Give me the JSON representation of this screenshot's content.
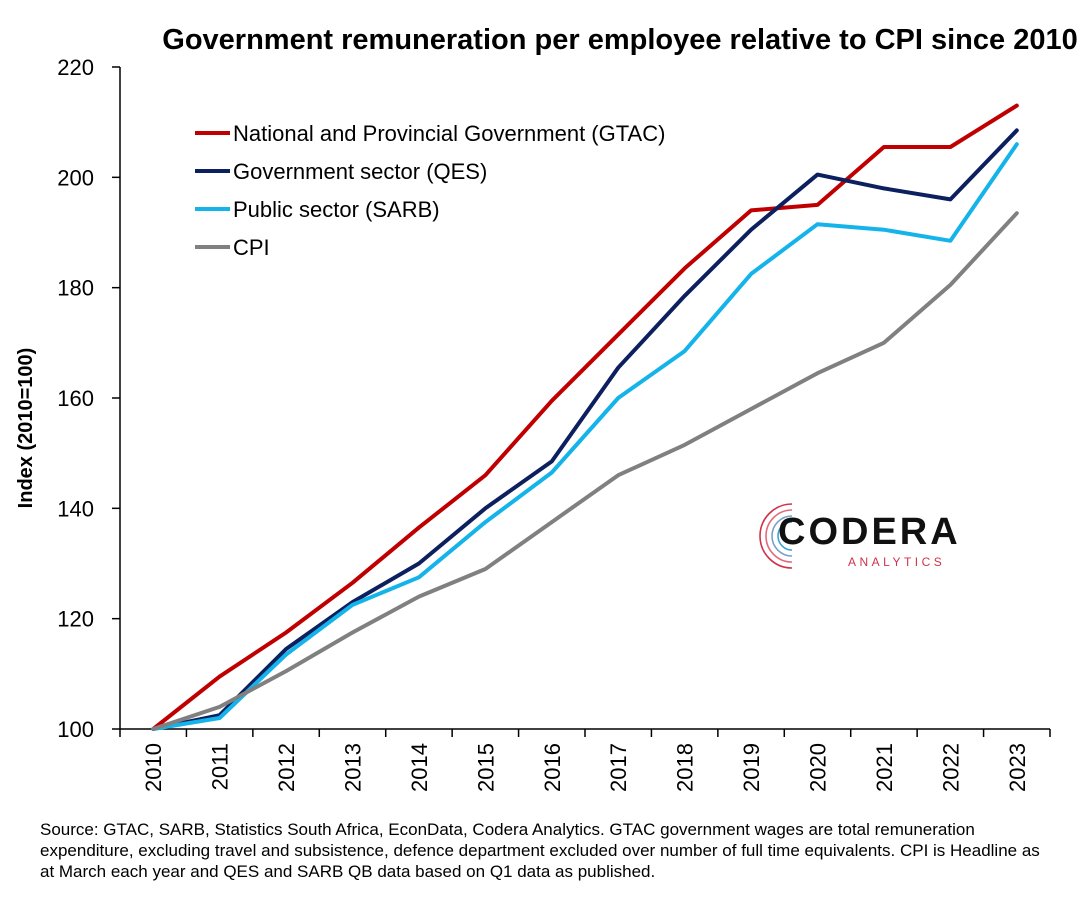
{
  "chart_data": {
    "type": "line",
    "title": "Government remuneration per employee relative to CPI since 2010",
    "xlabel": "",
    "ylabel": "Index (2010=100)",
    "x": [
      "2010",
      "2011",
      "2012",
      "2013",
      "2014",
      "2015",
      "2016",
      "2017",
      "2018",
      "2019",
      "2020",
      "2021",
      "2022",
      "2023"
    ],
    "ylim": [
      100,
      220
    ],
    "yticks": [
      100,
      120,
      140,
      160,
      180,
      200,
      220
    ],
    "grid": false,
    "legend_position": "top-left",
    "series": [
      {
        "name": "National and Provincial Government (GTAC)",
        "color": "#c00000",
        "values": [
          100,
          109.5,
          117.5,
          126.5,
          136.5,
          146,
          159.5,
          171.5,
          183.5,
          194,
          195,
          205.5,
          205.5,
          213
        ]
      },
      {
        "name": "Government sector (QES)",
        "color": "#0c1f5e",
        "values": [
          100,
          102.5,
          114.5,
          123,
          130,
          140,
          148.5,
          165.5,
          178.5,
          190.5,
          200.5,
          198,
          196,
          208.5
        ]
      },
      {
        "name": "Public sector (SARB)",
        "color": "#14b4ea",
        "values": [
          100,
          102,
          113.5,
          122.5,
          127.5,
          137.5,
          146.5,
          160,
          168.5,
          182.5,
          191.5,
          190.5,
          188.5,
          206
        ]
      },
      {
        "name": "CPI",
        "color": "#808080",
        "values": [
          100,
          104,
          110.5,
          117.5,
          124,
          129,
          137.5,
          146,
          151.5,
          158,
          164.5,
          170,
          180.5,
          193.5
        ]
      }
    ]
  },
  "source_note": "Source: GTAC, SARB, Statistics South Africa, EconData, Codera Analytics. GTAC government wages are total remuneration expenditure, excluding travel and subsistence, defence department excluded over number of full time equivalents. CPI is Headline as at March each year and QES and SARB QB data based on Q1 data as published.",
  "logo": {
    "name": "CODERA",
    "tagline": "ANALYTICS",
    "accent": "#d0324a"
  }
}
